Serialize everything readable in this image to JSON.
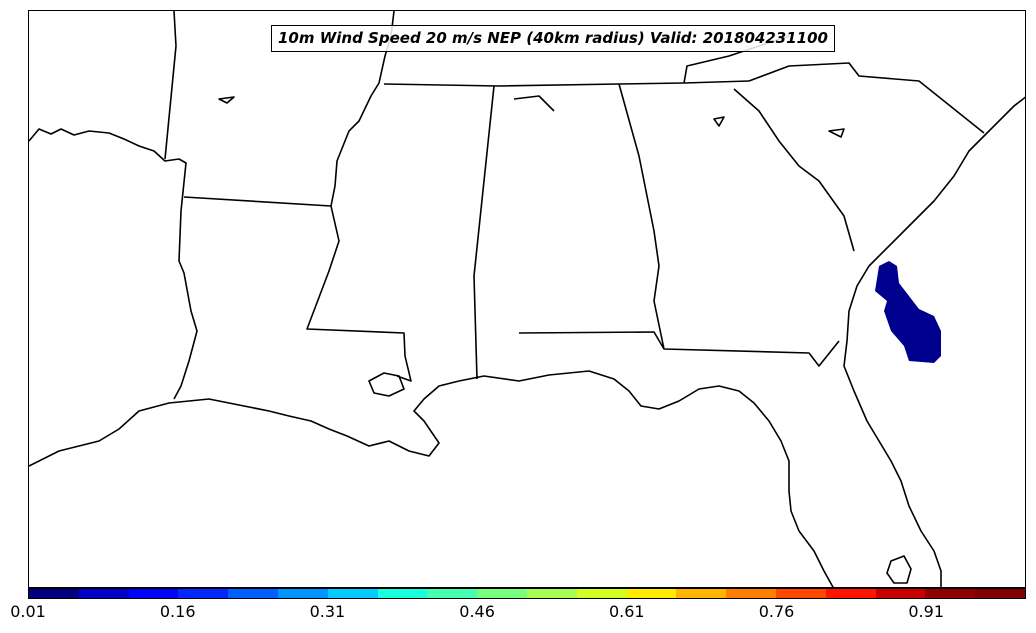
{
  "title": "10m Wind Speed 20 m/s NEP (40km radius) Valid: 201804231100",
  "colorbar": {
    "tick_labels": [
      "0.01",
      "0.16",
      "0.31",
      "0.46",
      "0.61",
      "0.76",
      "0.91"
    ],
    "colors": [
      "#00007f",
      "#0000c8",
      "#0000ff",
      "#0028ff",
      "#0060ff",
      "#0094ff",
      "#00ccff",
      "#1affde",
      "#46ffb0",
      "#78ff7e",
      "#a6ff50",
      "#d4ff23",
      "#ffea00",
      "#ffb400",
      "#ff8000",
      "#ff4800",
      "#ff1400",
      "#c80000",
      "#900000",
      "#7f0000"
    ]
  },
  "probability_area_color": "#00008f"
}
